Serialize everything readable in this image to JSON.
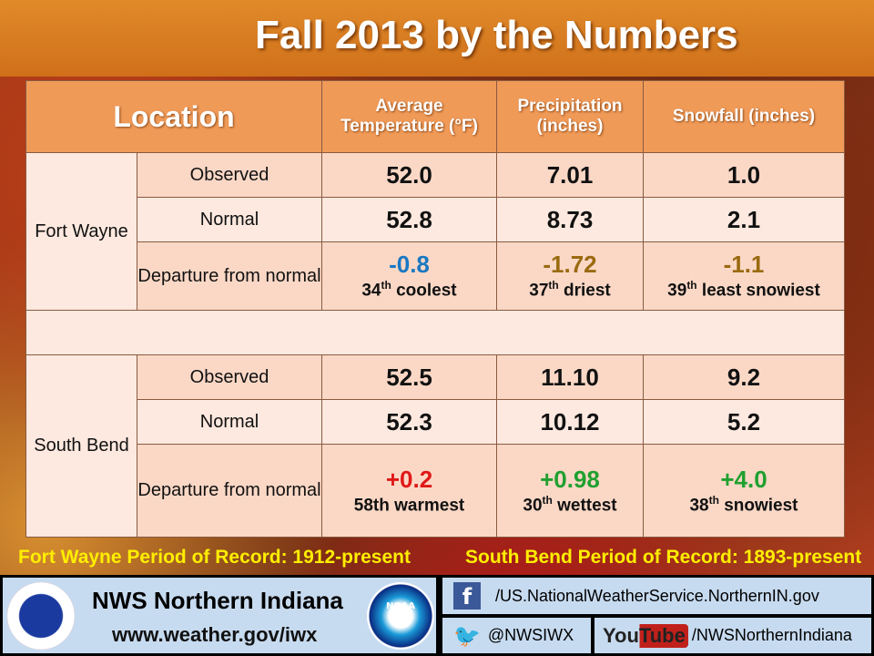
{
  "title": "Fall 2013 by the Numbers",
  "table": {
    "headers": {
      "location": "Location",
      "temp": "Average Temperature (°F)",
      "precip": "Precipitation (inches)",
      "snow": "Snowfall (inches)"
    },
    "locations": [
      {
        "name": "Fort Wayne",
        "rows": [
          {
            "label": "Observed",
            "temp": "52.0",
            "precip": "7.01",
            "snow": "1.0"
          },
          {
            "label": "Normal",
            "temp": "52.8",
            "precip": "8.73",
            "snow": "2.1"
          }
        ],
        "departure": {
          "label": "Departure from normal",
          "temp": {
            "value": "-0.8",
            "rank": "34",
            "sup": "th",
            "text": " coolest",
            "color": "#1a78c2"
          },
          "precip": {
            "value": "-1.72",
            "rank": "37",
            "sup": "th",
            "text": " driest",
            "color": "#9a6a10"
          },
          "snow": {
            "value": "-1.1",
            "rank": "39",
            "sup": "th",
            "text": " least snowiest",
            "color": "#9a6a10"
          }
        }
      },
      {
        "name": "South Bend",
        "rows": [
          {
            "label": "Observed",
            "temp": "52.5",
            "precip": "11.10",
            "snow": "9.2"
          },
          {
            "label": "Normal",
            "temp": "52.3",
            "precip": "10.12",
            "snow": "5.2"
          }
        ],
        "departure": {
          "label": "Departure from normal",
          "temp": {
            "value": "+0.2",
            "rank": "58th",
            "sup": "",
            "text": " warmest",
            "color": "#e01818"
          },
          "precip": {
            "value": "+0.98",
            "rank": "30",
            "sup": "th",
            "text": " wettest",
            "color": "#20a030"
          },
          "snow": {
            "value": "+4.0",
            "rank": "38",
            "sup": "th",
            "text": " snowiest",
            "color": "#20a030"
          }
        }
      }
    ]
  },
  "records": {
    "fort_wayne": "Fort Wayne Period of Record: 1912-present",
    "south_bend": "South Bend Period of Record: 1893-present"
  },
  "footer": {
    "office": "NWS Northern Indiana",
    "website": "www.weather.gov/iwx",
    "facebook": "/US.NationalWeatherService.NorthernIN.gov",
    "twitter": "@NWSIWX",
    "youtube": "/NWSNorthernIndiana",
    "youtube_logo": "YouTube",
    "noaa_logo": "NOAA"
  }
}
